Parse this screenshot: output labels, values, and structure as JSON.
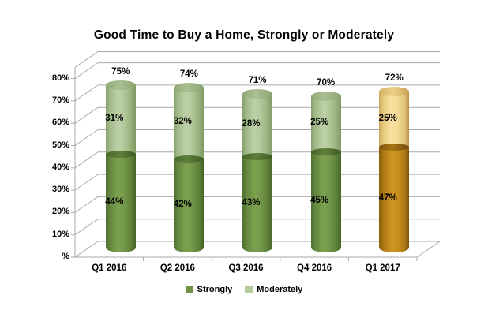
{
  "chart_data": {
    "type": "bar",
    "subtype": "3d-cylinder-stacked",
    "title": "Good Time to Buy a Home, Strongly or Moderately",
    "categories": [
      "Q1 2016",
      "Q2 2016",
      "Q3 2016",
      "Q4 2016",
      "Q1 2017"
    ],
    "series": [
      {
        "name": "Strongly",
        "values": [
          44,
          42,
          43,
          45,
          47
        ]
      },
      {
        "name": "Moderately",
        "values": [
          31,
          32,
          28,
          25,
          25
        ]
      }
    ],
    "totals": [
      75,
      74,
      71,
      70,
      72
    ],
    "value_labels": {
      "totals": [
        "75%",
        "74%",
        "71%",
        "70%",
        "72%"
      ],
      "strongly": [
        "44%",
        "42%",
        "43%",
        "45%",
        "47%"
      ],
      "moderately": [
        "31%",
        "32%",
        "28%",
        "25%",
        "25%"
      ]
    },
    "y_axis": {
      "tick_labels": [
        "80%",
        "70%",
        "60%",
        "50%",
        "40%",
        "30%",
        "20%",
        "10%",
        "%"
      ],
      "tick_values": [
        80,
        70,
        60,
        50,
        40,
        30,
        20,
        10,
        0
      ],
      "ylim": [
        0,
        85
      ],
      "grid": true
    },
    "legend": {
      "position": "bottom",
      "entries": [
        {
          "label": "Strongly",
          "color": "#6f9245"
        },
        {
          "label": "Moderately",
          "color": "#b4c99c"
        }
      ]
    },
    "highlight_category_index": 4,
    "colors": {
      "strongly_green": "#6f9245",
      "moderately_green": "#b4c99c",
      "strongly_gold": "#c98d1e",
      "moderately_gold": "#f6d88f",
      "gridline": "#a9a9a9",
      "label_text": "#000000",
      "background": "#ffffff"
    }
  }
}
